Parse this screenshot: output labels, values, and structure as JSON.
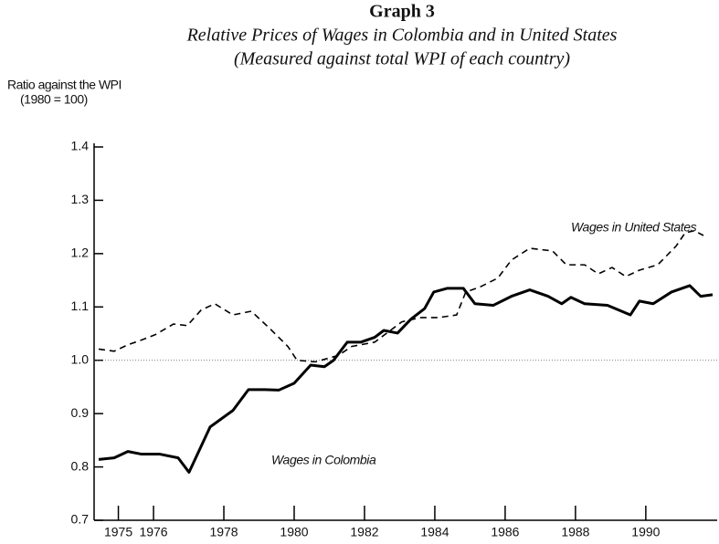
{
  "chart_data": {
    "type": "line",
    "title": "Graph 3",
    "subtitle": [
      "Relative Prices of Wages in Colombia and in United States",
      "(Measured against total WPI of each country)"
    ],
    "ylabel": [
      "Ratio against the WPI",
      "(1980 = 100)"
    ],
    "xlim": [
      1974.31,
      1992.03
    ],
    "xticks": [
      1975,
      1976,
      1978,
      1980,
      1982,
      1984,
      1986,
      1988,
      1990
    ],
    "ylim": [
      0.7,
      1.4
    ],
    "yticks": [
      0.7,
      0.8,
      0.9,
      {
        "value": 1,
        "label": "1.0"
      },
      1.1,
      1.2,
      1.3,
      1.4
    ],
    "reference_line": 1,
    "series": [
      {
        "name": "Wages in Colombia",
        "color": "#000000",
        "dash": false,
        "x": [
          1974.44,
          1974.88,
          1975.27,
          1975.66,
          1976.18,
          1976.7,
          1977.01,
          1977.61,
          1978.26,
          1978.7,
          1979.17,
          1979.56,
          1980.0,
          1980.47,
          1980.86,
          1981.12,
          1981.51,
          1981.9,
          1982.29,
          1982.55,
          1982.94,
          1983.32,
          1983.71,
          1983.97,
          1984.36,
          1984.81,
          1985.14,
          1985.66,
          1986.18,
          1986.7,
          1987.22,
          1987.61,
          1987.87,
          1988.26,
          1988.91,
          1989.56,
          1989.82,
          1990.21,
          1990.73,
          1991.25,
          1991.56,
          1991.9
        ],
        "values": [
          0.814,
          0.817,
          0.829,
          0.824,
          0.824,
          0.817,
          0.79,
          0.875,
          0.906,
          0.945,
          0.945,
          0.944,
          0.957,
          0.991,
          0.988,
          1.0,
          1.034,
          1.034,
          1.043,
          1.056,
          1.051,
          1.077,
          1.097,
          1.128,
          1.135,
          1.135,
          1.106,
          1.103,
          1.12,
          1.132,
          1.12,
          1.106,
          1.118,
          1.106,
          1.103,
          1.085,
          1.111,
          1.106,
          1.128,
          1.14,
          1.12,
          1.123
        ]
      },
      {
        "name": "Wages in United States",
        "color": "#000000",
        "dash": true,
        "x": [
          1974.44,
          1974.88,
          1975.27,
          1975.66,
          1976.05,
          1976.57,
          1976.96,
          1977.35,
          1977.74,
          1978.26,
          1978.78,
          1979.3,
          1979.82,
          1980.08,
          1980.6,
          1981.25,
          1981.64,
          1982.29,
          1983.06,
          1983.58,
          1984.1,
          1984.62,
          1984.88,
          1985.27,
          1985.79,
          1986.18,
          1986.7,
          1987.35,
          1987.74,
          1988.26,
          1988.65,
          1989.04,
          1989.43,
          1989.82,
          1990.34,
          1990.86,
          1991.12,
          1991.38,
          1991.64
        ],
        "values": [
          1.021,
          1.017,
          1.029,
          1.038,
          1.048,
          1.068,
          1.065,
          1.094,
          1.106,
          1.085,
          1.092,
          1.06,
          1.026,
          1.0,
          0.997,
          1.009,
          1.026,
          1.034,
          1.072,
          1.08,
          1.08,
          1.085,
          1.128,
          1.137,
          1.154,
          1.188,
          1.21,
          1.205,
          1.179,
          1.179,
          1.162,
          1.174,
          1.157,
          1.169,
          1.179,
          1.214,
          1.239,
          1.243,
          1.234
        ]
      }
    ]
  }
}
